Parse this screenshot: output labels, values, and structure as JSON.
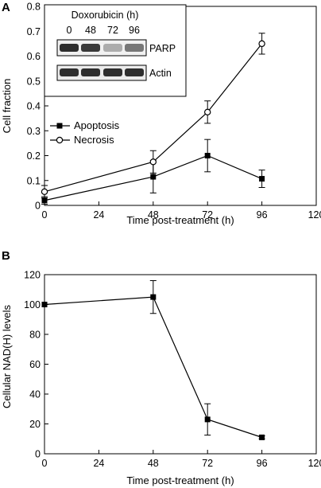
{
  "chart_data": [
    {
      "panel": "A",
      "type": "line",
      "xlabel": "Time post-treatment (h)",
      "ylabel": "Cell fraction",
      "xlim": [
        0,
        120
      ],
      "ylim": [
        0,
        0.8
      ],
      "xticks": [
        0,
        24,
        48,
        72,
        96,
        120
      ],
      "yticks": [
        0,
        0.1,
        0.2,
        0.3,
        0.4,
        0.5,
        0.6,
        0.7,
        0.8
      ],
      "ytick_labels": [
        "0",
        "0.1",
        "0.2",
        "0.3",
        "0.4",
        "0.5",
        "0.6",
        "0.7",
        "0.8"
      ],
      "grid": false,
      "legend_position": "left",
      "series": [
        {
          "name": "Apoptosis",
          "marker": "filled-square",
          "x": [
            0,
            48,
            72,
            96
          ],
          "y": [
            0.02,
            0.115,
            0.2,
            0.107
          ],
          "err": [
            0.015,
            0.065,
            0.065,
            0.035
          ]
        },
        {
          "name": "Necrosis",
          "marker": "open-circle",
          "x": [
            0,
            48,
            72,
            96
          ],
          "y": [
            0.055,
            0.175,
            0.375,
            0.65
          ],
          "err": [
            0.025,
            0.045,
            0.045,
            0.042
          ]
        }
      ],
      "inset": {
        "title": "Doxorubicin (h)",
        "lanes": [
          "0",
          "48",
          "72",
          "96"
        ],
        "blots": [
          {
            "label": "PARP",
            "intensity": [
              0.9,
              0.85,
              0.3,
              0.55
            ]
          },
          {
            "label": "Actin",
            "intensity": [
              0.9,
              0.9,
              0.9,
              0.9
            ]
          }
        ]
      }
    },
    {
      "panel": "B",
      "type": "line",
      "xlabel": "Time post-treatment (h)",
      "ylabel": "Cellular NAD(H) levels",
      "xlim": [
        0,
        120
      ],
      "ylim": [
        0,
        120
      ],
      "xticks": [
        0,
        24,
        48,
        72,
        96,
        120
      ],
      "yticks": [
        0,
        20,
        40,
        60,
        80,
        100,
        120
      ],
      "ytick_labels": [
        "0",
        "20",
        "40",
        "60",
        "80",
        "100",
        "120"
      ],
      "grid": false,
      "series": [
        {
          "name": "",
          "marker": "filled-square",
          "x": [
            0,
            48,
            72,
            96
          ],
          "y": [
            100,
            105,
            23,
            11
          ],
          "err": [
            0,
            11,
            10.5,
            1
          ]
        }
      ]
    }
  ]
}
